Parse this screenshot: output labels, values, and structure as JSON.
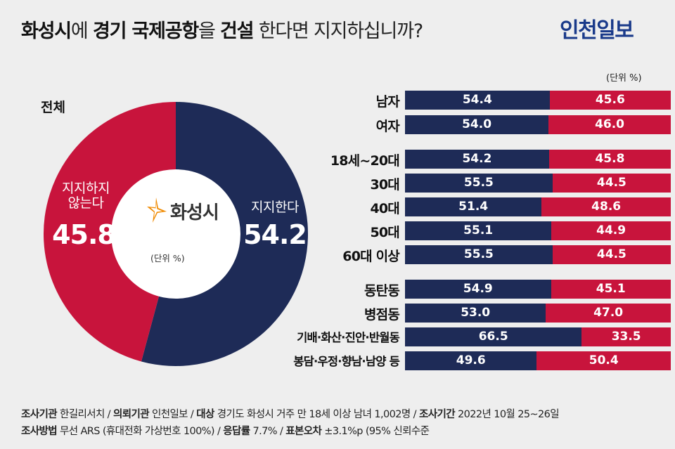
{
  "title": {
    "p1": "화성시",
    "p2": "에 ",
    "p3": "경기 국제공항",
    "p4": "을 ",
    "p5": "건설",
    "p6": " 한다면 지지하십니까?"
  },
  "logo": "인천일보",
  "unit": "(단위 %)",
  "overall": {
    "label": "전체",
    "support_label": "지지한다",
    "oppose_label_1": "지지하지",
    "oppose_label_2": "않는다",
    "support_value": "54.2",
    "oppose_value": "45.8",
    "center_logo": "화성시",
    "center_unit": "(단위 %)"
  },
  "colors": {
    "support": "#1e2b57",
    "oppose": "#c8143c",
    "background": "#eeeeee"
  },
  "chart_data": [
    {
      "type": "pie",
      "title": "전체",
      "labels": [
        "지지한다",
        "지지하지 않는다"
      ],
      "values": [
        54.2,
        45.8
      ]
    },
    {
      "type": "bar",
      "orientation": "horizontal-stacked",
      "series_names": [
        "지지한다",
        "지지하지 않는다"
      ],
      "categories": [
        "남자",
        "여자",
        "18세~20대",
        "30대",
        "40대",
        "50대",
        "60대 이상",
        "동탄동",
        "병점동",
        "기배·화산·진안·반월동",
        "봉담·우정·향남·남양 등"
      ],
      "series": [
        {
          "name": "지지한다",
          "values": [
            54.4,
            54.0,
            54.2,
            55.5,
            51.4,
            55.1,
            55.5,
            54.9,
            53.0,
            66.5,
            49.6
          ]
        },
        {
          "name": "지지하지 않는다",
          "values": [
            45.6,
            46.0,
            45.8,
            44.5,
            48.6,
            44.9,
            44.5,
            45.1,
            47.0,
            33.5,
            50.4
          ]
        }
      ],
      "labels": [
        [
          "54.4",
          "45.6"
        ],
        [
          "54.0",
          "46.0"
        ],
        [
          "54.2",
          "45.8"
        ],
        [
          "55.5",
          "44.5"
        ],
        [
          "51.4",
          "48.6"
        ],
        [
          "55.1",
          "44.9"
        ],
        [
          "55.5",
          "44.5"
        ],
        [
          "54.9",
          "45.1"
        ],
        [
          "53.0",
          "47.0"
        ],
        [
          "66.5",
          "33.5"
        ],
        [
          "49.6",
          "50.4"
        ]
      ]
    }
  ],
  "footer": {
    "l1": [
      {
        "b": "조사기관",
        "t": " 한길리서치 / "
      },
      {
        "b": "의뢰기관",
        "t": " 인천일보 / "
      },
      {
        "b": "대상",
        "t": " 경기도 화성시 거주 만 18세 이상 남녀 1,002명 / "
      },
      {
        "b": "조사기간",
        "t": " 2022년 10월 25~26일"
      }
    ],
    "l2": [
      {
        "b": "조사방법",
        "t": " 무선 ARS (휴대전화 가상번호 100%) / "
      },
      {
        "b": "응답률",
        "t": " 7.7% / "
      },
      {
        "b": "표본오차",
        "t": " ±3.1%p (95% 신뢰수준"
      }
    ]
  }
}
